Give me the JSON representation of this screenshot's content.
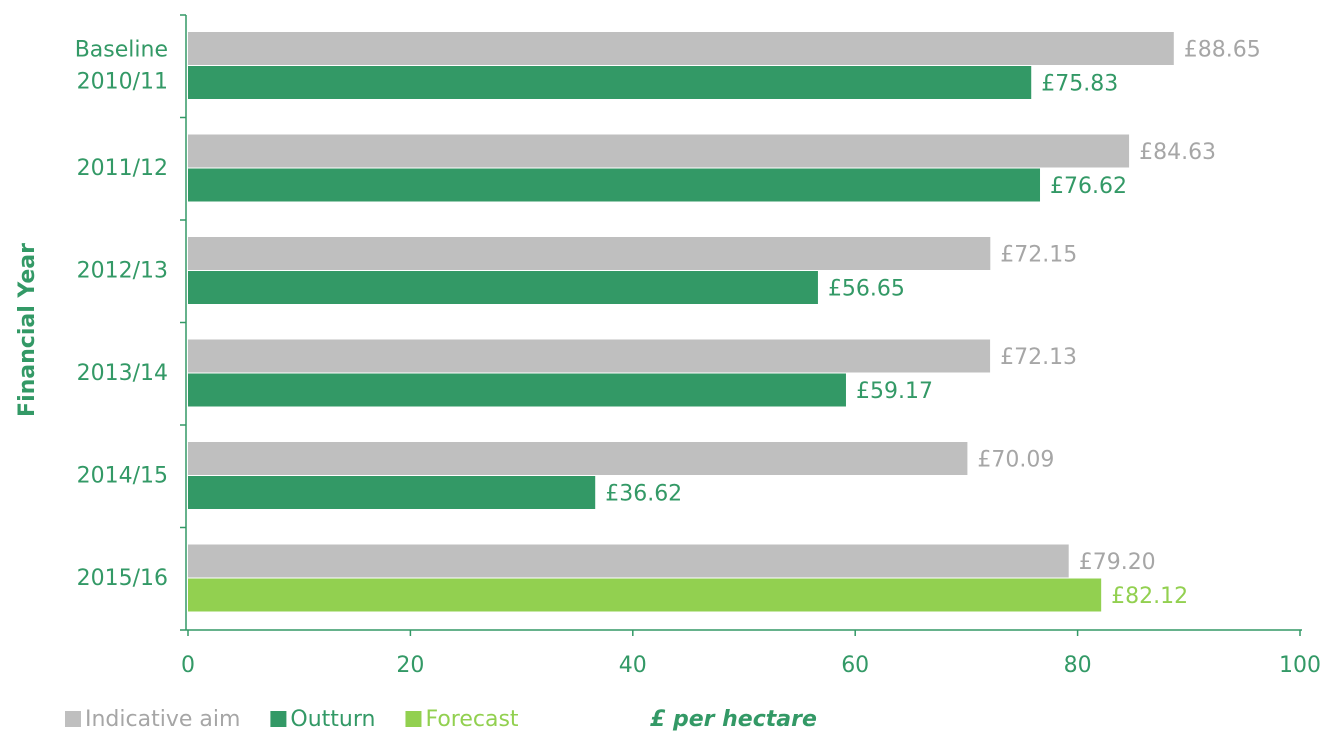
{
  "chart_data": {
    "type": "hbar",
    "categories": [
      "Baseline 2010/11",
      "2011/12",
      "2012/13",
      "2013/14",
      "2014/15",
      "2015/16"
    ],
    "series": [
      {
        "name": "Indicative aim",
        "color": "#bfbfbf",
        "label_color": "#a6a6a6",
        "values": [
          88.65,
          84.63,
          72.15,
          72.13,
          70.09,
          79.2
        ],
        "value_labels": [
          "£88.65",
          "£84.63",
          "£72.15",
          "£72.13",
          "£70.09",
          "£79.20"
        ]
      },
      {
        "name": "Outturn",
        "color": "#339966",
        "label_color": "#339966",
        "values": [
          75.83,
          76.62,
          56.65,
          59.17,
          36.62,
          null
        ],
        "value_labels": [
          "£75.83",
          "£76.62",
          "£56.65",
          "£59.17",
          "£36.62",
          null
        ]
      },
      {
        "name": "Forecast",
        "color": "#92d050",
        "label_color": "#92d050",
        "values": [
          null,
          null,
          null,
          null,
          null,
          82.12
        ],
        "value_labels": [
          null,
          null,
          null,
          null,
          null,
          "£82.12"
        ]
      }
    ],
    "xlim": [
      0,
      100
    ],
    "xticks": [
      0,
      20,
      40,
      60,
      80,
      100
    ],
    "x_label": "£ per hectare",
    "y_label": "Financial Year",
    "legend": "bottom-left"
  }
}
